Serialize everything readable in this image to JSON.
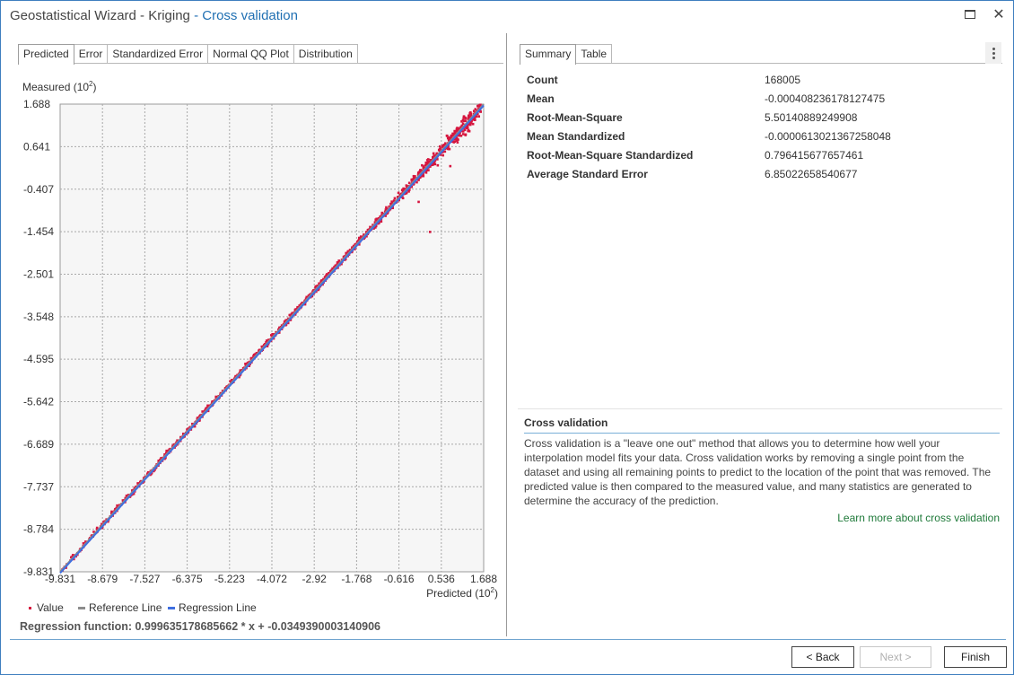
{
  "window": {
    "title_main": "Geostatistical Wizard - Kriging",
    "title_accent": " - Cross validation",
    "close_glyph": "✕"
  },
  "left_tabs": [
    "Predicted",
    "Error",
    "Standardized Error",
    "Normal QQ Plot",
    "Distribution"
  ],
  "right_tabs": [
    "Summary",
    "Table"
  ],
  "chart_data": {
    "type": "scatter",
    "ylabel": "Measured (10",
    "ylabel_exp": "2",
    "ylabel_close": ")",
    "xlabel": "Predicted (10",
    "xlabel_exp": "2",
    "xlabel_close": ")",
    "y_ticks": [
      "1.688",
      "0.641",
      "-0.407",
      "-1.454",
      "-2.501",
      "-3.548",
      "-4.595",
      "-5.642",
      "-6.689",
      "-7.737",
      "-8.784",
      "-9.831"
    ],
    "x_ticks": [
      "-9.831",
      "-8.679",
      "-7.527",
      "-6.375",
      "-5.223",
      "-4.072",
      "-2.92",
      "-1.768",
      "-0.616",
      "0.536",
      "1.688"
    ],
    "xlim": [
      -9.831,
      1.688
    ],
    "ylim": [
      -9.831,
      1.688
    ],
    "grid": true,
    "legend": [
      {
        "label": "Value",
        "color": "#d6163f"
      },
      {
        "label": "Reference Line",
        "color": "#8c8c8c"
      },
      {
        "label": "Regression Line",
        "color": "#3f6fe0"
      }
    ],
    "regression": {
      "slope": 0.999635178685662,
      "intercept": -0.0349390003140906
    },
    "point_color": "#d6163f",
    "outliers": [
      [
        1.3,
        1.02
      ],
      [
        1.2,
        0.94
      ],
      [
        0.78,
        0.16
      ],
      [
        0.23,
        -1.46
      ],
      [
        -0.08,
        -0.72
      ],
      [
        0.97,
        1.03
      ],
      [
        0.44,
        0.18
      ]
    ]
  },
  "regression_function": "Regression function: 0.999635178685662 * x + -0.0349390003140906",
  "summary": [
    {
      "label": "Count",
      "value": "168005"
    },
    {
      "label": "Mean",
      "value": "-0.000408236178127475"
    },
    {
      "label": "Root-Mean-Square",
      "value": "5.50140889249908"
    },
    {
      "label": "Mean Standardized",
      "value": "-0.0000613021367258048"
    },
    {
      "label": "Root-Mean-Square Standardized",
      "value": "0.796415677657461"
    },
    {
      "label": "Average Standard Error",
      "value": "6.85022658540677"
    }
  ],
  "info": {
    "title": "Cross validation",
    "text": "Cross validation is a \"leave one out\" method that allows you to determine how well your interpolation model fits your data. Cross validation works by removing a single point from the dataset and using all remaining points to predict to the location of the point that was removed. The predicted value is then compared to the measured value, and many statistics are generated to determine the accuracy of the prediction.",
    "link": "Learn more about cross validation"
  },
  "buttons": {
    "back": "< Back",
    "next": "Next >",
    "finish": "Finish"
  }
}
